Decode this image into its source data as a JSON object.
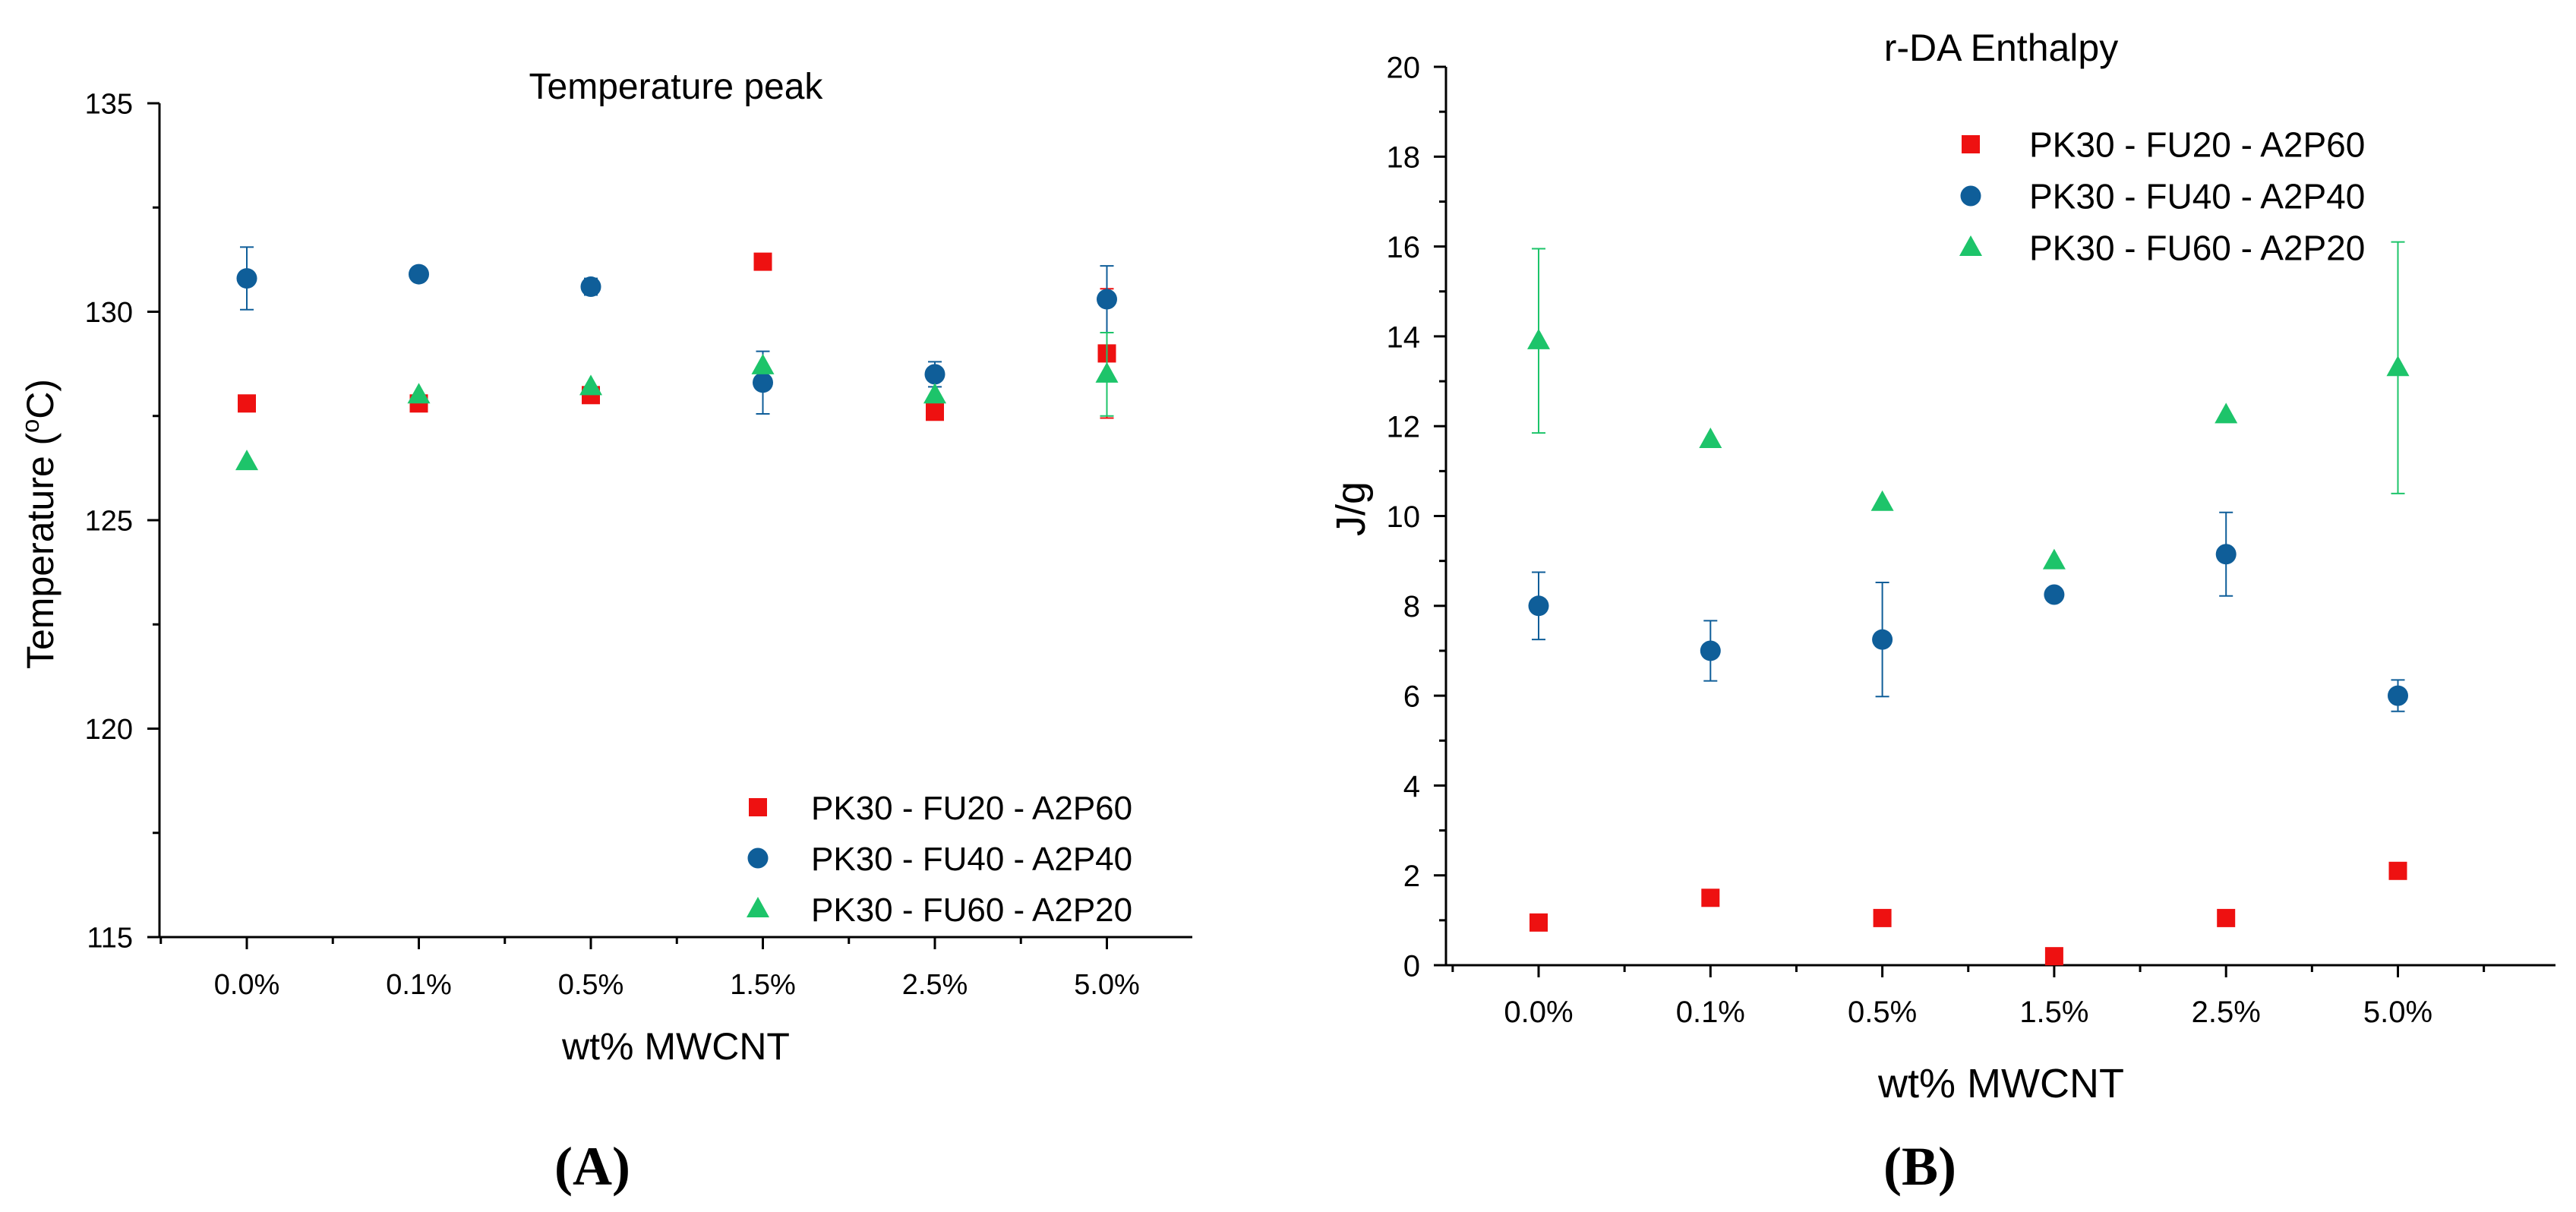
{
  "chart_data": [
    {
      "panel_label": "A",
      "type": "scatter",
      "title": "Temperature peak",
      "xlabel": "wt% MWCNT",
      "ylabel": "Temperature (ºC)",
      "ylabel_main": "Temperature (",
      "ylabel_sup": "o",
      "ylabel_tail": "C)",
      "categories": [
        "0.0%",
        "0.1%",
        "0.5%",
        "1.5%",
        "2.5%",
        "5.0%"
      ],
      "ylim": [
        115,
        135
      ],
      "yticks": [
        115,
        120,
        125,
        130,
        135
      ],
      "y_minor_step": 2.5,
      "grid": false,
      "legend_position": "bottom-right",
      "series": [
        {
          "name": "PK30 - FU20 - A2P60",
          "marker": "square",
          "color": "#ee1111",
          "values": [
            127.8,
            127.8,
            128.0,
            131.2,
            127.6,
            129.0
          ],
          "errors": [
            0,
            0,
            0,
            0,
            0,
            1.55
          ]
        },
        {
          "name": "PK30 - FU40 - A2P40",
          "marker": "circle",
          "color": "#0f5e99",
          "values": [
            130.8,
            130.9,
            130.6,
            128.3,
            128.5,
            130.3
          ],
          "errors": [
            0.75,
            0,
            0.2,
            0.75,
            0.3,
            0.8
          ]
        },
        {
          "name": "PK30 - FU60 - A2P20",
          "marker": "triangle",
          "color": "#1dc46a",
          "values": [
            126.4,
            128.0,
            128.2,
            128.7,
            128.0,
            128.5
          ],
          "errors": [
            0,
            0,
            0,
            0,
            0,
            1.0
          ]
        }
      ]
    },
    {
      "panel_label": "B",
      "type": "scatter",
      "title": "r-DA Enthalpy",
      "xlabel": "wt% MWCNT",
      "ylabel": "J/g",
      "categories": [
        "0.0%",
        "0.1%",
        "0.5%",
        "1.5%",
        "2.5%",
        "5.0%"
      ],
      "ylim": [
        0,
        20
      ],
      "yticks": [
        0,
        2,
        4,
        6,
        8,
        10,
        12,
        14,
        16,
        18,
        20
      ],
      "y_minor_step": 1,
      "grid": false,
      "legend_position": "top-right",
      "series": [
        {
          "name": "PK30 - FU20 - A2P60",
          "marker": "square",
          "color": "#ee1111",
          "values": [
            0.95,
            1.5,
            1.05,
            0.2,
            1.05,
            2.1
          ],
          "errors": [
            0,
            0,
            0,
            0,
            0,
            0
          ]
        },
        {
          "name": "PK30 - FU40 - A2P40",
          "marker": "circle",
          "color": "#0f5e99",
          "values": [
            8.0,
            7.0,
            7.25,
            8.25,
            9.15,
            6.0
          ],
          "errors": [
            0.75,
            0.67,
            1.27,
            0,
            0.93,
            0.35
          ]
        },
        {
          "name": "PK30 - FU60 - A2P20",
          "marker": "triangle",
          "color": "#1dc46a",
          "values": [
            13.9,
            11.7,
            10.3,
            9.0,
            12.25,
            13.3
          ],
          "errors": [
            2.05,
            0,
            0,
            0,
            0,
            2.8
          ]
        }
      ]
    }
  ]
}
